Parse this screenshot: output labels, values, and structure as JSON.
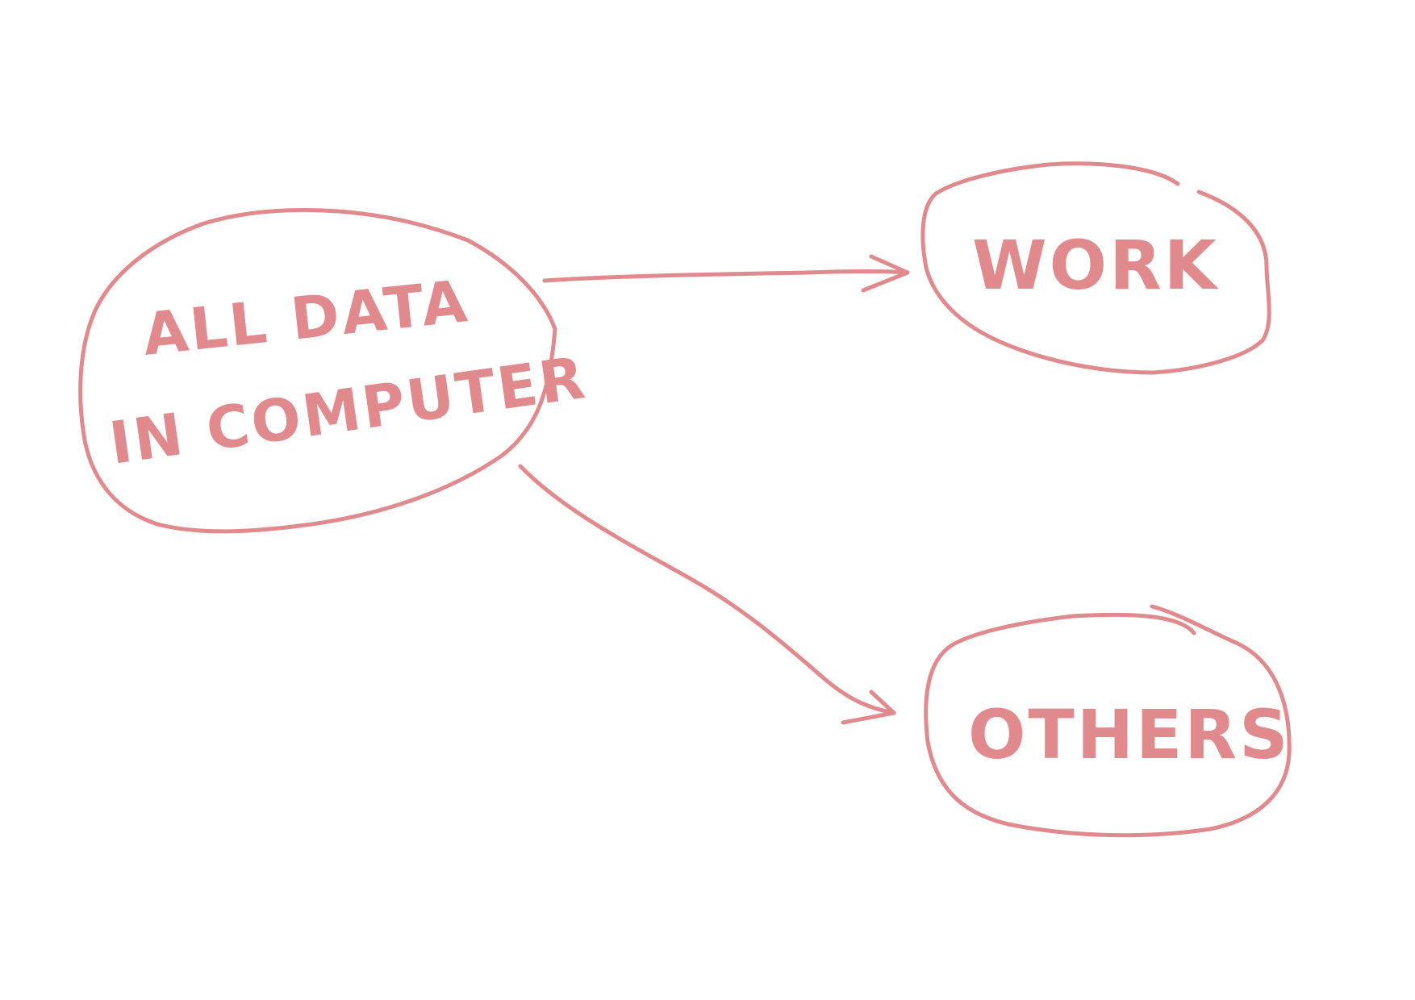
{
  "style": {
    "ink_color": "#e08a8d",
    "accent_color": "#d94a4f",
    "background": "#ffffff"
  },
  "nodes": {
    "source": {
      "line1": "ALL DATA",
      "line2": "IN COMPUTER"
    },
    "work": {
      "label": "WORK"
    },
    "others": {
      "label": "OTHERS"
    }
  },
  "edges": [
    {
      "from": "ALL DATA IN COMPUTER",
      "to": "WORK"
    },
    {
      "from": "ALL DATA IN COMPUTER",
      "to": "OTHERS"
    }
  ]
}
